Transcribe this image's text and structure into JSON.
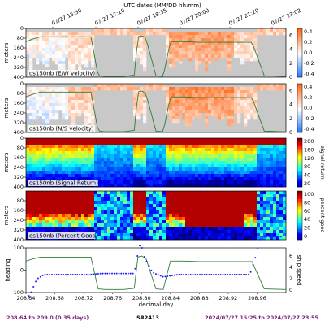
{
  "page": {
    "top_title": "UTC dates (MM/DD hh:mm)",
    "footer_left": "208.64 to 209.0 (0.35 days)",
    "footer_center": "SR2413",
    "footer_right": "2024/07/27 15:25 to 2024/07/27 23:55",
    "colors": {
      "footer_text": "#7a1f7a",
      "track": "#2e7d32",
      "heading": "#1a1aff"
    }
  },
  "chart_data": [
    {
      "type": "heatmap",
      "panel_label": "os150nb (E/W velocity)",
      "ylabel": "meters",
      "yticks": [
        0,
        80,
        160,
        240,
        320,
        400
      ],
      "colorbar_ticks": [
        "0.4",
        "0.2",
        "0.0",
        "-0.2",
        "-0.4"
      ],
      "right_ticks": [
        "0",
        "2",
        "4",
        "6"
      ],
      "colormap": "blue-white-red"
    },
    {
      "type": "heatmap",
      "panel_label": "os150nb (N/S velocity)",
      "ylabel": "meters",
      "yticks": [
        0,
        80,
        160,
        240,
        320,
        400
      ],
      "colorbar_ticks": [
        "0.4",
        "0.2",
        "0.0",
        "-0.2",
        "-0.4"
      ],
      "right_ticks": [
        "0",
        "2",
        "4",
        "6"
      ],
      "colormap": "blue-white-red"
    },
    {
      "type": "heatmap",
      "panel_label": "os150nb (Signal Return)",
      "ylabel": "meters",
      "yticks": [
        0,
        80,
        160,
        240,
        320,
        400
      ],
      "colorbar_ticks": [
        "200",
        "160",
        "120",
        "80",
        "40",
        "20"
      ],
      "colorbar_label": "signal return",
      "colormap": "jet"
    },
    {
      "type": "heatmap",
      "panel_label": "os150nb (Percent Good)",
      "ylabel": "meters",
      "yticks": [
        80,
        160,
        240,
        320,
        400
      ],
      "colorbar_ticks": [
        "100",
        "80",
        "60",
        "40",
        "20",
        "0"
      ],
      "colorbar_label": "percent good",
      "colormap": "jet"
    },
    {
      "type": "line",
      "ylabel_left": "heading",
      "ylabel_right": "ship speed",
      "xlabel": "decimal day",
      "yticks_left": [
        "100",
        "0",
        "-100"
      ],
      "yticks_right": [
        "0",
        "2",
        "4",
        "6"
      ],
      "xticks": [
        208.64,
        208.68,
        208.72,
        208.76,
        208.8,
        208.84,
        208.88,
        208.92,
        208.96
      ],
      "xlim": [
        208.64,
        209.0
      ],
      "top_xticks": [
        "07/27 15:50",
        "07/27 17:10",
        "07/27 18:35",
        "07/27 20:00",
        "07/27 21:20",
        "07/27 23:02"
      ],
      "speed_series": {
        "x": [
          208.64,
          208.65,
          208.66,
          208.73,
          208.74,
          208.75,
          208.775,
          208.79,
          208.795,
          208.8,
          208.806,
          208.82,
          208.83,
          208.84,
          208.86,
          208.88,
          208.9,
          208.92,
          208.94,
          208.953,
          208.97,
          209.0
        ],
        "y": [
          5.1,
          5.5,
          5.8,
          5.8,
          0.2,
          0.1,
          0.1,
          0.3,
          5.8,
          6.0,
          5.6,
          0.2,
          0.1,
          5.1,
          5.1,
          5.0,
          5.0,
          5.0,
          5.0,
          5.0,
          0.2,
          0.1
        ]
      },
      "heading_series": {
        "x": [
          208.645,
          208.655,
          208.665,
          208.685,
          208.705,
          208.725,
          208.735,
          208.745,
          208.765,
          208.79,
          208.797,
          208.8,
          208.804,
          208.815,
          208.83,
          208.85,
          208.87,
          208.89,
          208.91,
          208.93,
          208.95,
          208.958,
          208.965,
          208.975,
          208.99
        ],
        "y": [
          -115,
          -40,
          -20,
          -20,
          -20,
          -20,
          -18,
          -15,
          -15,
          -15,
          110,
          110,
          60,
          -10,
          -30,
          -20,
          -20,
          -20,
          -20,
          -20,
          -20,
          60,
          150,
          150,
          150
        ]
      }
    }
  ]
}
